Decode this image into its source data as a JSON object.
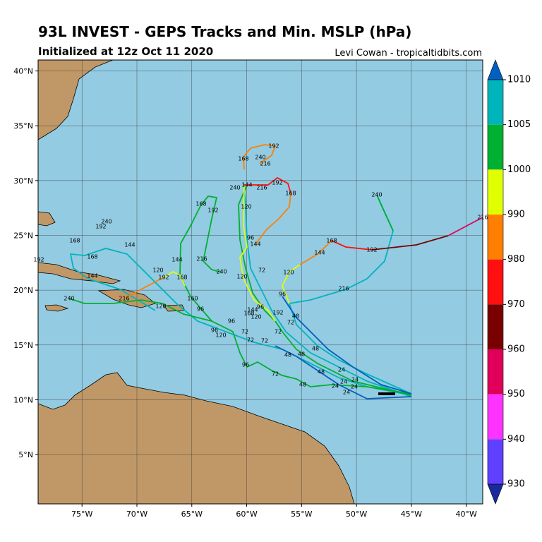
{
  "header": {
    "title": "93L INVEST - GEPS Tracks and Min. MSLP (hPa)",
    "subtitle": "Initialized at 12z Oct 11 2020",
    "credit": "Levi Cowan - tropicaltidbits.com"
  },
  "map": {
    "lonlim": [
      -79,
      -38.5
    ],
    "latlim": [
      0.5,
      41
    ],
    "lon_ticks": [
      {
        "value": -75,
        "label": "75°W"
      },
      {
        "value": -70,
        "label": "70°W"
      },
      {
        "value": -65,
        "label": "65°W"
      },
      {
        "value": -60,
        "label": "60°W"
      },
      {
        "value": -55,
        "label": "55°W"
      },
      {
        "value": -50,
        "label": "50°W"
      },
      {
        "value": -45,
        "label": "45°W"
      },
      {
        "value": -40,
        "label": "40°W"
      }
    ],
    "lat_ticks": [
      {
        "value": 5,
        "label": "5°N"
      },
      {
        "value": 10,
        "label": "10°N"
      },
      {
        "value": 15,
        "label": "15°N"
      },
      {
        "value": 20,
        "label": "20°N"
      },
      {
        "value": 25,
        "label": "25°N"
      },
      {
        "value": 30,
        "label": "30°N"
      },
      {
        "value": 35,
        "label": "35°N"
      },
      {
        "value": 40,
        "label": "40°N"
      }
    ],
    "track_labels": [
      "192",
      "168",
      "240",
      "216",
      "192",
      "240",
      "144",
      "216",
      "168",
      "168",
      "192",
      "120",
      "96",
      "144",
      "240",
      "216",
      "168",
      "144",
      "192",
      "144",
      "168",
      "168",
      "192",
      "144",
      "144",
      "216",
      "240",
      "120",
      "192",
      "168",
      "72",
      "120",
      "120",
      "96",
      "216",
      "240",
      "216",
      "120",
      "240",
      "192",
      "96",
      "144",
      "168",
      "120",
      "192",
      "48",
      "72",
      "96",
      "96",
      "96",
      "120",
      "72",
      "72",
      "72",
      "72",
      "48",
      "48",
      "48",
      "48",
      "24",
      "24",
      "24",
      "24",
      "24",
      "24",
      "96",
      "72",
      "48",
      "160"
    ]
  },
  "colorbar": {
    "levels": [
      1010,
      1005,
      1000,
      990,
      980,
      970,
      960,
      950,
      940,
      930
    ],
    "colors": [
      "#00b4bc",
      "#00b030",
      "#e0ff00",
      "#ff7f00",
      "#ff1010",
      "#780000",
      "#e0005a",
      "#ff33ff",
      "#6040ff"
    ],
    "top_color": "#0060c0",
    "bottom_color": "#1a2a9c"
  }
}
